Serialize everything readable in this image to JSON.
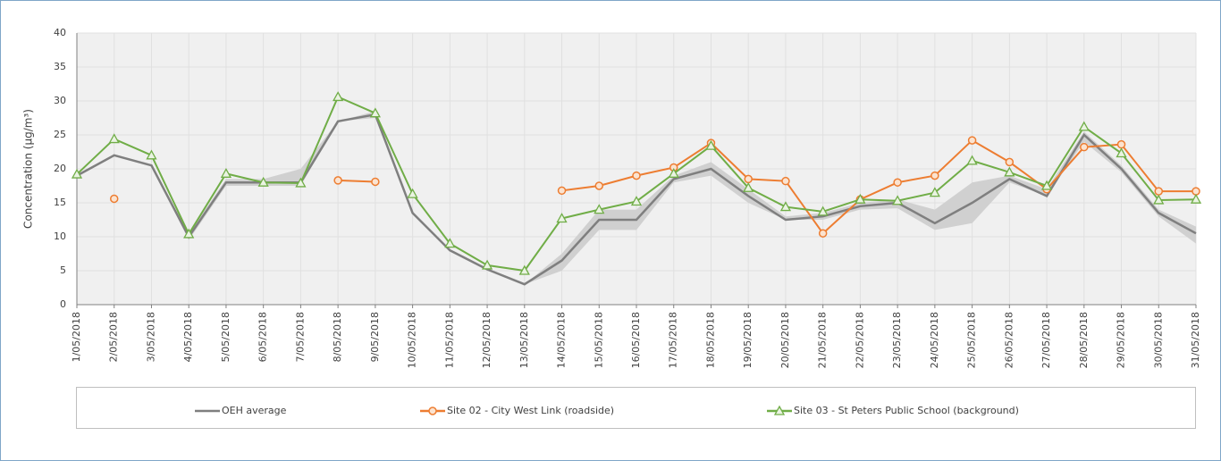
{
  "chart_data": {
    "type": "line",
    "y_label": "Concentration (µg/m³)",
    "categories": [
      "1/05/2018",
      "2/05/2018",
      "3/05/2018",
      "4/05/2018",
      "5/05/2018",
      "6/05/2018",
      "7/05/2018",
      "8/05/2018",
      "9/05/2018",
      "10/05/2018",
      "11/05/2018",
      "12/05/2018",
      "13/05/2018",
      "14/05/2018",
      "15/05/2018",
      "16/05/2018",
      "17/05/2018",
      "18/05/2018",
      "19/05/2018",
      "20/05/2018",
      "21/05/2018",
      "22/05/2018",
      "23/05/2018",
      "24/05/2018",
      "25/05/2018",
      "26/05/2018",
      "27/05/2018",
      "28/05/2018",
      "29/05/2018",
      "30/05/2018",
      "31/05/2018"
    ],
    "ylim": [
      0,
      40
    ],
    "yticks": [
      0,
      5,
      10,
      15,
      20,
      25,
      30,
      35,
      40
    ],
    "grid": true,
    "band": {
      "color": "#d0d0d0",
      "upper": [
        19,
        22,
        20.5,
        10.5,
        18.5,
        18.5,
        20,
        27,
        28.5,
        13.5,
        8,
        5.2,
        3,
        7.5,
        14,
        14,
        19,
        21,
        17,
        13,
        13.5,
        15,
        15.5,
        14,
        18,
        19,
        17,
        25.5,
        20.5,
        14,
        11.5
      ],
      "lower": [
        19,
        22,
        20.5,
        9.5,
        17.5,
        17.5,
        17.5,
        27,
        27.5,
        13.5,
        8,
        5.2,
        3,
        5,
        11,
        11,
        18,
        19,
        15,
        12.5,
        12.5,
        14,
        14.2,
        11,
        12,
        18,
        16,
        24,
        19.5,
        13,
        9
      ]
    },
    "series": [
      {
        "name": "OEH average",
        "color": "#7f7f7f",
        "marker": "none",
        "values": [
          19,
          22,
          20.5,
          10,
          18,
          18,
          18,
          27,
          28,
          13.5,
          8,
          5.2,
          3,
          6.5,
          12.5,
          12.5,
          18.5,
          20,
          16,
          12.5,
          13,
          14.5,
          15,
          12,
          15,
          18.5,
          16,
          25,
          20,
          13.5,
          10.5
        ]
      },
      {
        "name": "Site 02 - City West Link (roadside)",
        "color": "#ed7d31",
        "marker": "circle",
        "values": [
          null,
          15.6,
          null,
          null,
          null,
          null,
          null,
          18.3,
          18.1,
          null,
          null,
          null,
          null,
          16.8,
          17.5,
          19,
          20.2,
          23.8,
          18.5,
          18.2,
          10.5,
          15.5,
          18,
          19,
          24.2,
          21,
          17,
          23.2,
          23.6,
          16.7,
          16.7
        ]
      },
      {
        "name": "Site 03 - St Peters Public School (background)",
        "color": "#70ad47",
        "marker": "triangle",
        "values": [
          19.2,
          24.4,
          22,
          10.4,
          19.3,
          18,
          17.9,
          30.6,
          28.2,
          16.3,
          9,
          5.8,
          5,
          12.7,
          14,
          15.2,
          19.3,
          23.4,
          17.2,
          14.4,
          13.7,
          15.5,
          15.3,
          16.5,
          21.2,
          19.5,
          17.5,
          26.2,
          22.3,
          15.4,
          15.5
        ]
      }
    ]
  }
}
